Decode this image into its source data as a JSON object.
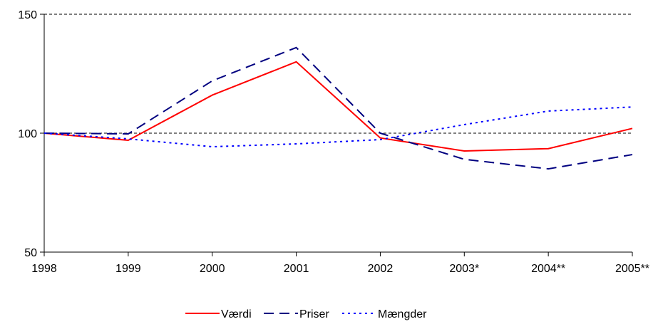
{
  "chart_data": {
    "type": "line",
    "categories": [
      "1998",
      "1999",
      "2000",
      "2001",
      "2002",
      "2003*",
      "2004**",
      "2005**"
    ],
    "series": [
      {
        "name": "Værdi",
        "color": "#ff0000",
        "dash": "none",
        "values": [
          100,
          97,
          116,
          130,
          98,
          92.5,
          93.5,
          102
        ]
      },
      {
        "name": "Priser",
        "color": "#000080",
        "dash": "14 8",
        "values": [
          100,
          99.7,
          122,
          136,
          100,
          89,
          85,
          91
        ]
      },
      {
        "name": "Mængder",
        "color": "#0000ff",
        "dash": "3 5",
        "values": [
          100,
          97.6,
          94.3,
          95.5,
          97.3,
          103.6,
          109.3,
          111
        ]
      }
    ],
    "ylim": [
      50,
      150
    ],
    "yticks": [
      50,
      100,
      150
    ],
    "grid": true,
    "legend": "bottom"
  }
}
